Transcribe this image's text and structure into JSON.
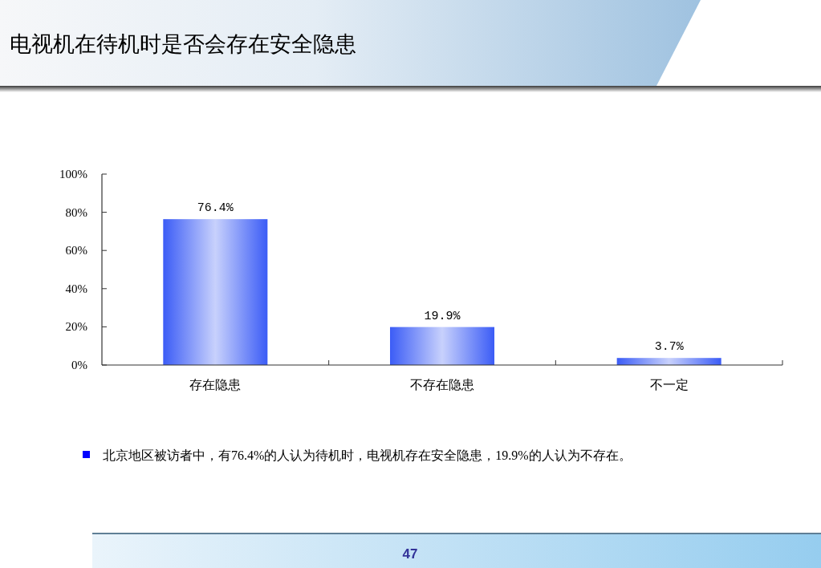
{
  "chart_data": {
    "type": "bar",
    "title": "电视机在待机时是否会存在安全隐患",
    "categories": [
      "存在隐患",
      "不存在隐患",
      "不一定"
    ],
    "values": [
      76.4,
      19.9,
      3.7
    ],
    "color": "#3b5cf6",
    "value_labels": [
      "76.4%",
      "19.9%",
      "3.7%"
    ],
    "ylim": [
      0,
      100
    ],
    "yticks": [
      {
        "value": 0,
        "label": "0%"
      },
      {
        "value": 20,
        "label": "20%"
      },
      {
        "value": 40,
        "label": "40%"
      },
      {
        "value": 60,
        "label": "60%"
      },
      {
        "value": 80,
        "label": "80%"
      },
      {
        "value": 100,
        "label": "100%"
      }
    ],
    "annotations": [
      "北京地区被访者中，有76.4%的人认为待机时，电视机存在安全隐患，19.9%的人认为不存在。",
      "47"
    ]
  }
}
